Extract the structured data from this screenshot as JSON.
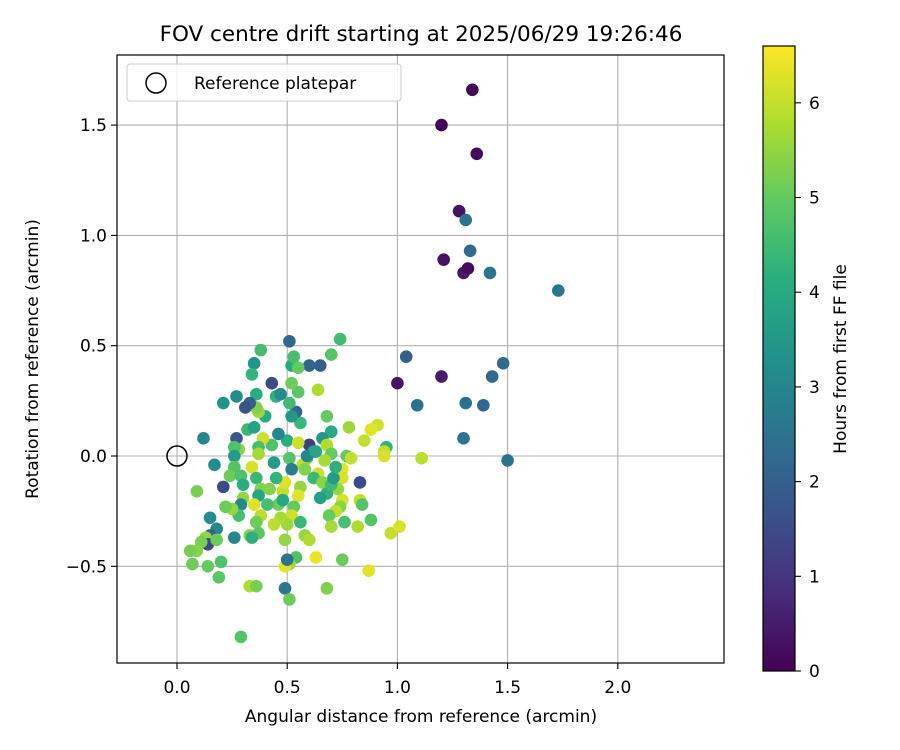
{
  "chart_data": {
    "type": "scatter",
    "title": "FOV centre drift starting at 2025/06/29 19:26:46",
    "xlabel": "Angular distance from reference (arcmin)",
    "ylabel": "Rotation from reference (arcmin)",
    "xlim": [
      -0.27,
      2.45
    ],
    "ylim": [
      -0.95,
      1.8
    ],
    "xticks": [
      0.0,
      0.5,
      1.0,
      1.5,
      2.0
    ],
    "xtick_labels": [
      "0.0",
      "0.5",
      "1.0",
      "1.5",
      "2.0"
    ],
    "yticks": [
      -0.5,
      0.0,
      0.5,
      1.0,
      1.5
    ],
    "ytick_labels": [
      "−0.5",
      "0.0",
      "0.5",
      "1.0",
      "1.5"
    ],
    "grid": true,
    "legend": {
      "placement": "top-left",
      "entries": [
        "Reference platepar"
      ]
    },
    "reference_point": {
      "x": 0.0,
      "y": 0.0,
      "marker": "open-circle",
      "label": "Reference platepar"
    },
    "colorbar": {
      "label": "Hours from first FF file",
      "colormap": "viridis",
      "range": [
        0,
        6.6
      ],
      "ticks": [
        0,
        1,
        2,
        3,
        4,
        5,
        6
      ],
      "tick_labels": [
        "0",
        "1",
        "2",
        "3",
        "4",
        "5",
        "6"
      ]
    },
    "points": [
      {
        "x": 1.34,
        "y": 1.66,
        "c": 0.1
      },
      {
        "x": 1.2,
        "y": 1.5,
        "c": 0.1
      },
      {
        "x": 1.36,
        "y": 1.37,
        "c": 0.2
      },
      {
        "x": 1.28,
        "y": 1.11,
        "c": 0.3
      },
      {
        "x": 1.31,
        "y": 1.07,
        "c": 2.5
      },
      {
        "x": 1.33,
        "y": 0.93,
        "c": 2.3
      },
      {
        "x": 1.21,
        "y": 0.89,
        "c": 0.3
      },
      {
        "x": 1.3,
        "y": 0.83,
        "c": 0.4
      },
      {
        "x": 1.32,
        "y": 0.85,
        "c": 0.2
      },
      {
        "x": 1.42,
        "y": 0.83,
        "c": 2.5
      },
      {
        "x": 1.73,
        "y": 0.75,
        "c": 2.6
      },
      {
        "x": 1.04,
        "y": 0.45,
        "c": 2.0
      },
      {
        "x": 1.48,
        "y": 0.42,
        "c": 2.3
      },
      {
        "x": 1.43,
        "y": 0.36,
        "c": 2.3
      },
      {
        "x": 1.2,
        "y": 0.36,
        "c": 0.5
      },
      {
        "x": 1.0,
        "y": 0.33,
        "c": 0.4
      },
      {
        "x": 1.09,
        "y": 0.23,
        "c": 2.4
      },
      {
        "x": 1.31,
        "y": 0.24,
        "c": 2.4
      },
      {
        "x": 1.39,
        "y": 0.23,
        "c": 2.2
      },
      {
        "x": 1.3,
        "y": 0.08,
        "c": 2.5
      },
      {
        "x": 1.5,
        "y": -0.02,
        "c": 2.5
      },
      {
        "x": 1.11,
        "y": -0.01,
        "c": 5.9
      },
      {
        "x": 0.95,
        "y": 0.04,
        "c": 4.3
      },
      {
        "x": 0.94,
        "y": 0.02,
        "c": 6.0
      },
      {
        "x": 0.94,
        "y": 0.0,
        "c": 6.2
      },
      {
        "x": 0.91,
        "y": 0.14,
        "c": 6.1
      },
      {
        "x": 0.88,
        "y": 0.12,
        "c": 6.3
      },
      {
        "x": 0.85,
        "y": 0.07,
        "c": 6.0
      },
      {
        "x": 0.83,
        "y": -0.12,
        "c": 1.5
      },
      {
        "x": 0.83,
        "y": -0.2,
        "c": 6.0
      },
      {
        "x": 0.84,
        "y": -0.22,
        "c": 4.8
      },
      {
        "x": 0.88,
        "y": -0.29,
        "c": 4.8
      },
      {
        "x": 0.82,
        "y": -0.32,
        "c": 5.8
      },
      {
        "x": 0.87,
        "y": -0.52,
        "c": 6.3
      },
      {
        "x": 0.97,
        "y": -0.35,
        "c": 6.0
      },
      {
        "x": 1.01,
        "y": -0.32,
        "c": 6.2
      },
      {
        "x": 0.78,
        "y": 0.13,
        "c": 5.6
      },
      {
        "x": 0.77,
        "y": 0.0,
        "c": 5.0
      },
      {
        "x": 0.79,
        "y": -0.01,
        "c": 6.0
      },
      {
        "x": 0.75,
        "y": -0.06,
        "c": 6.3
      },
      {
        "x": 0.75,
        "y": -0.1,
        "c": 6.2
      },
      {
        "x": 0.73,
        "y": -0.15,
        "c": 5.5
      },
      {
        "x": 0.75,
        "y": -0.2,
        "c": 6.2
      },
      {
        "x": 0.74,
        "y": -0.23,
        "c": 5.4
      },
      {
        "x": 0.72,
        "y": -0.25,
        "c": 6.0
      },
      {
        "x": 0.69,
        "y": -0.27,
        "c": 5.0
      },
      {
        "x": 0.7,
        "y": -0.32,
        "c": 5.7
      },
      {
        "x": 0.76,
        "y": -0.3,
        "c": 4.6
      },
      {
        "x": 0.75,
        "y": -0.47,
        "c": 5.1
      },
      {
        "x": 0.68,
        "y": -0.6,
        "c": 5.3
      },
      {
        "x": 0.74,
        "y": 0.53,
        "c": 4.5
      },
      {
        "x": 0.7,
        "y": 0.46,
        "c": 4.8
      },
      {
        "x": 0.65,
        "y": 0.41,
        "c": 2.0
      },
      {
        "x": 0.6,
        "y": 0.41,
        "c": 2.2
      },
      {
        "x": 0.64,
        "y": 0.3,
        "c": 5.8
      },
      {
        "x": 0.68,
        "y": 0.18,
        "c": 5.0
      },
      {
        "x": 0.7,
        "y": 0.11,
        "c": 4.0
      },
      {
        "x": 0.66,
        "y": 0.08,
        "c": 3.5
      },
      {
        "x": 0.68,
        "y": 0.05,
        "c": 5.8
      },
      {
        "x": 0.7,
        "y": 0.01,
        "c": 5.0
      },
      {
        "x": 0.67,
        "y": -0.02,
        "c": 5.7
      },
      {
        "x": 0.64,
        "y": -0.08,
        "c": 6.1
      },
      {
        "x": 0.62,
        "y": -0.1,
        "c": 4.4
      },
      {
        "x": 0.66,
        "y": -0.12,
        "c": 5.4
      },
      {
        "x": 0.68,
        "y": -0.17,
        "c": 4.2
      },
      {
        "x": 0.65,
        "y": -0.19,
        "c": 3.7
      },
      {
        "x": 0.6,
        "y": 0.05,
        "c": 1.2
      },
      {
        "x": 0.62,
        "y": 0.02,
        "c": 3.6
      },
      {
        "x": 0.59,
        "y": -0.01,
        "c": 5.2
      },
      {
        "x": 0.57,
        "y": -0.04,
        "c": 6.0
      },
      {
        "x": 0.56,
        "y": 0.15,
        "c": 4.4
      },
      {
        "x": 0.54,
        "y": 0.2,
        "c": 2.2
      },
      {
        "x": 0.55,
        "y": 0.29,
        "c": 4.9
      },
      {
        "x": 0.52,
        "y": 0.33,
        "c": 5.1
      },
      {
        "x": 0.52,
        "y": 0.41,
        "c": 4.0
      },
      {
        "x": 0.53,
        "y": 0.45,
        "c": 4.6
      },
      {
        "x": 0.51,
        "y": 0.52,
        "c": 2.2
      },
      {
        "x": 0.55,
        "y": 0.4,
        "c": 5.0
      },
      {
        "x": 0.51,
        "y": 0.24,
        "c": 4.5
      },
      {
        "x": 0.52,
        "y": 0.18,
        "c": 3.5
      },
      {
        "x": 0.5,
        "y": 0.07,
        "c": 4.1
      },
      {
        "x": 0.51,
        "y": -0.01,
        "c": 4.8
      },
      {
        "x": 0.52,
        "y": -0.06,
        "c": 2.8
      },
      {
        "x": 0.55,
        "y": 0.06,
        "c": 6.1
      },
      {
        "x": 0.56,
        "y": -0.14,
        "c": 5.5
      },
      {
        "x": 0.55,
        "y": -0.18,
        "c": 6.3
      },
      {
        "x": 0.53,
        "y": -0.23,
        "c": 5.0
      },
      {
        "x": 0.52,
        "y": -0.27,
        "c": 6.1
      },
      {
        "x": 0.5,
        "y": -0.31,
        "c": 5.6
      },
      {
        "x": 0.56,
        "y": -0.3,
        "c": 4.4
      },
      {
        "x": 0.58,
        "y": -0.36,
        "c": 5.5
      },
      {
        "x": 0.6,
        "y": -0.38,
        "c": 5.8
      },
      {
        "x": 0.63,
        "y": -0.46,
        "c": 6.4
      },
      {
        "x": 0.54,
        "y": -0.46,
        "c": 4.7
      },
      {
        "x": 0.51,
        "y": -0.49,
        "c": 5.6
      },
      {
        "x": 0.49,
        "y": -0.5,
        "c": 6.3
      },
      {
        "x": 0.5,
        "y": -0.47,
        "c": 2.5
      },
      {
        "x": 0.49,
        "y": -0.6,
        "c": 2.6
      },
      {
        "x": 0.51,
        "y": -0.65,
        "c": 5.1
      },
      {
        "x": 0.49,
        "y": -0.38,
        "c": 5.5
      },
      {
        "x": 0.47,
        "y": -0.28,
        "c": 5.7
      },
      {
        "x": 0.46,
        "y": -0.22,
        "c": 5.1
      },
      {
        "x": 0.48,
        "y": -0.16,
        "c": 6.0
      },
      {
        "x": 0.49,
        "y": -0.12,
        "c": 6.3
      },
      {
        "x": 0.45,
        "y": -0.1,
        "c": 4.3
      },
      {
        "x": 0.44,
        "y": -0.03,
        "c": 3.6
      },
      {
        "x": 0.43,
        "y": 0.05,
        "c": 4.7
      },
      {
        "x": 0.46,
        "y": 0.1,
        "c": 3.0
      },
      {
        "x": 0.45,
        "y": 0.27,
        "c": 4.2
      },
      {
        "x": 0.47,
        "y": 0.28,
        "c": 3.2
      },
      {
        "x": 0.43,
        "y": 0.33,
        "c": 1.5
      },
      {
        "x": 0.4,
        "y": 0.18,
        "c": 4.1
      },
      {
        "x": 0.39,
        "y": 0.08,
        "c": 6.1
      },
      {
        "x": 0.37,
        "y": 0.2,
        "c": 5.6
      },
      {
        "x": 0.36,
        "y": 0.22,
        "c": 5.3
      },
      {
        "x": 0.38,
        "y": 0.48,
        "c": 4.6
      },
      {
        "x": 0.35,
        "y": 0.42,
        "c": 3.4
      },
      {
        "x": 0.34,
        "y": 0.37,
        "c": 4.3
      },
      {
        "x": 0.36,
        "y": 0.28,
        "c": 4.1
      },
      {
        "x": 0.33,
        "y": 0.24,
        "c": 2.0
      },
      {
        "x": 0.32,
        "y": 0.12,
        "c": 4.4
      },
      {
        "x": 0.35,
        "y": 0.13,
        "c": 3.8
      },
      {
        "x": 0.37,
        "y": 0.04,
        "c": 4.6
      },
      {
        "x": 0.37,
        "y": 0.01,
        "c": 5.7
      },
      {
        "x": 0.34,
        "y": -0.05,
        "c": 6.2
      },
      {
        "x": 0.36,
        "y": -0.1,
        "c": 4.4
      },
      {
        "x": 0.38,
        "y": -0.15,
        "c": 5.3
      },
      {
        "x": 0.37,
        "y": -0.18,
        "c": 3.9
      },
      {
        "x": 0.35,
        "y": -0.22,
        "c": 6.3
      },
      {
        "x": 0.38,
        "y": -0.27,
        "c": 5.9
      },
      {
        "x": 0.36,
        "y": -0.3,
        "c": 5.1
      },
      {
        "x": 0.37,
        "y": -0.35,
        "c": 4.9
      },
      {
        "x": 0.33,
        "y": -0.36,
        "c": 5.4
      },
      {
        "x": 0.33,
        "y": -0.59,
        "c": 5.8
      },
      {
        "x": 0.36,
        "y": -0.59,
        "c": 5.2
      },
      {
        "x": 0.29,
        "y": -0.82,
        "c": 4.8
      },
      {
        "x": 0.31,
        "y": 0.22,
        "c": 1.7
      },
      {
        "x": 0.27,
        "y": 0.27,
        "c": 3.2
      },
      {
        "x": 0.21,
        "y": 0.24,
        "c": 3.4
      },
      {
        "x": 0.27,
        "y": 0.08,
        "c": 1.8
      },
      {
        "x": 0.28,
        "y": 0.03,
        "c": 5.4
      },
      {
        "x": 0.26,
        "y": 0.04,
        "c": 4.7
      },
      {
        "x": 0.26,
        "y": 0.0,
        "c": 3.6
      },
      {
        "x": 0.26,
        "y": -0.05,
        "c": 4.8
      },
      {
        "x": 0.24,
        "y": -0.09,
        "c": 5.1
      },
      {
        "x": 0.29,
        "y": -0.09,
        "c": 4.7
      },
      {
        "x": 0.3,
        "y": -0.13,
        "c": 4.1
      },
      {
        "x": 0.3,
        "y": -0.19,
        "c": 5.5
      },
      {
        "x": 0.29,
        "y": -0.22,
        "c": 3.1
      },
      {
        "x": 0.28,
        "y": -0.27,
        "c": 4.6
      },
      {
        "x": 0.25,
        "y": -0.24,
        "c": 5.5
      },
      {
        "x": 0.22,
        "y": -0.23,
        "c": 5.1
      },
      {
        "x": 0.21,
        "y": -0.14,
        "c": 1.5
      },
      {
        "x": 0.17,
        "y": -0.04,
        "c": 3.2
      },
      {
        "x": 0.12,
        "y": 0.08,
        "c": 3.0
      },
      {
        "x": 0.09,
        "y": -0.16,
        "c": 5.2
      },
      {
        "x": 0.15,
        "y": -0.28,
        "c": 3.2
      },
      {
        "x": 0.18,
        "y": -0.33,
        "c": 3.0
      },
      {
        "x": 0.15,
        "y": -0.36,
        "c": 2.2
      },
      {
        "x": 0.13,
        "y": -0.37,
        "c": 5.5
      },
      {
        "x": 0.14,
        "y": -0.4,
        "c": 1.4
      },
      {
        "x": 0.18,
        "y": -0.38,
        "c": 5.1
      },
      {
        "x": 0.11,
        "y": -0.39,
        "c": 5.2
      },
      {
        "x": 0.09,
        "y": -0.43,
        "c": 5.4
      },
      {
        "x": 0.06,
        "y": -0.43,
        "c": 5.2
      },
      {
        "x": 0.07,
        "y": -0.49,
        "c": 5.1
      },
      {
        "x": 0.14,
        "y": -0.5,
        "c": 5.0
      },
      {
        "x": 0.2,
        "y": -0.48,
        "c": 4.7
      },
      {
        "x": 0.19,
        "y": -0.55,
        "c": 4.9
      },
      {
        "x": 0.26,
        "y": -0.37,
        "c": 3.0
      },
      {
        "x": 0.34,
        "y": -0.37,
        "c": 4.2
      },
      {
        "x": 0.41,
        "y": -0.22,
        "c": 4.6
      },
      {
        "x": 0.42,
        "y": -0.15,
        "c": 5.3
      },
      {
        "x": 0.44,
        "y": -0.31,
        "c": 5.9
      },
      {
        "x": 0.48,
        "y": -0.2,
        "c": 4.0
      },
      {
        "x": 0.58,
        "y": -0.06,
        "c": 5.3
      },
      {
        "x": 0.59,
        "y": 0.0,
        "c": 3.0
      },
      {
        "x": 0.63,
        "y": 0.02,
        "c": 3.9
      },
      {
        "x": 0.7,
        "y": -0.13,
        "c": 4.5
      },
      {
        "x": 0.71,
        "y": -0.1,
        "c": 3.6
      },
      {
        "x": 0.72,
        "y": -0.05,
        "c": 4.2
      }
    ]
  }
}
